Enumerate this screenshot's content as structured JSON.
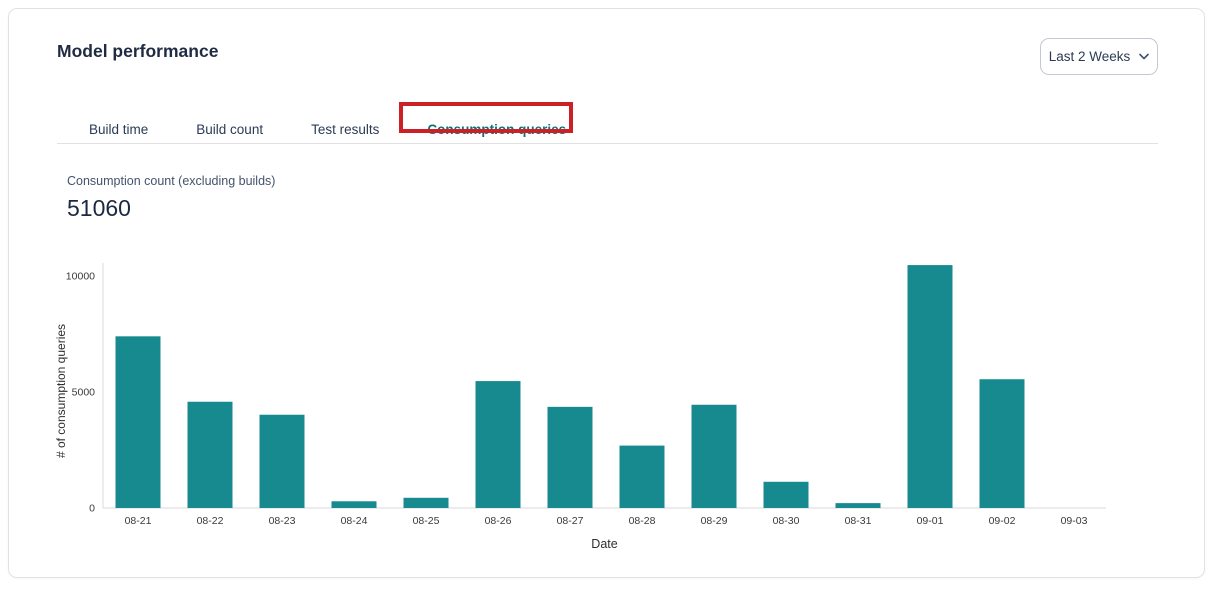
{
  "header": {
    "title": "Model performance",
    "date_range": {
      "value": "Last 2 Weeks"
    }
  },
  "tabs": {
    "items": [
      {
        "label": "Build time",
        "active": false
      },
      {
        "label": "Build count",
        "active": false
      },
      {
        "label": "Test results",
        "active": false
      },
      {
        "label": "Consumption queries",
        "active": true
      }
    ],
    "active_color": "#0c7277",
    "highlight_box_color": "#cb2026"
  },
  "metric": {
    "label": "Consumption count (excluding builds)",
    "value": "51060"
  },
  "chart_data": {
    "type": "bar",
    "title": "",
    "categories": [
      "08-21",
      "08-22",
      "08-23",
      "08-24",
      "08-25",
      "08-26",
      "08-27",
      "08-28",
      "08-29",
      "08-30",
      "08-31",
      "09-01",
      "09-02",
      "09-03"
    ],
    "values": [
      7400,
      4580,
      4020,
      290,
      440,
      5470,
      4360,
      2690,
      4450,
      1130,
      210,
      10470,
      5550,
      0
    ],
    "xlabel": "Date",
    "ylabel": "# of consumption queries",
    "yticks": [
      0,
      5000,
      10000
    ],
    "ylim": [
      0,
      10800
    ],
    "bar_color": "#178a8f",
    "axis_color": "#d9d9d9",
    "tick_text_color": "#3a3a3a",
    "grid": false,
    "legend": false
  }
}
